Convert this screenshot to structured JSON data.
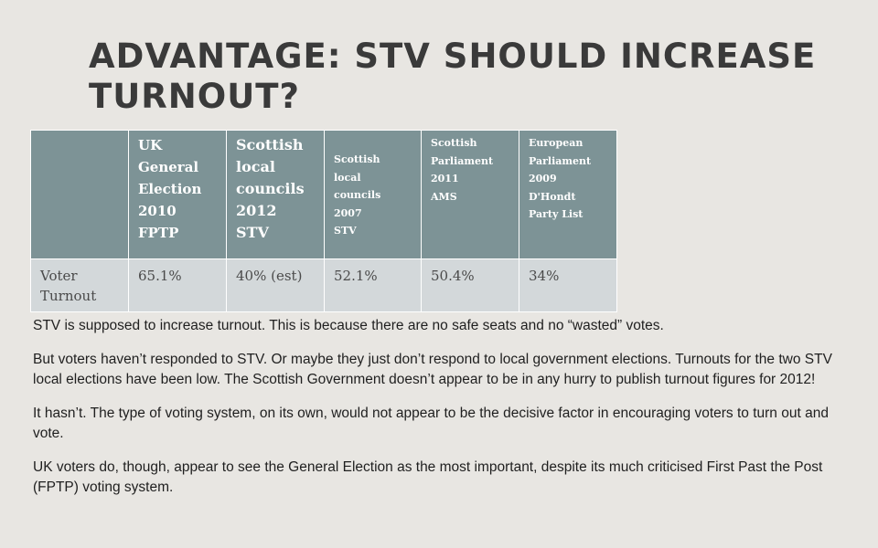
{
  "slide": {
    "title": "ADVANTAGE: STV SHOULD INCREASE TURNOUT?"
  },
  "table": {
    "headers": [
      "",
      "UK\nGeneral\nElection\n2010\nFPTP",
      "Scottish\nlocal\ncouncils\n2012\nSTV",
      "Scottish\nlocal\ncouncils\n2007\nSTV",
      "Scottish\nParliament\n2011\nAMS",
      "European\nParliament\n2009\nD'Hondt\nParty List"
    ],
    "rows": [
      [
        "Voter\nTurnout",
        "65.1%",
        "40% (est)",
        "52.1%",
        "50.4%",
        "34%"
      ]
    ]
  },
  "body": {
    "paragraphs": [
      "STV is supposed to increase turnout. This is because there are no safe seats and no “wasted” votes.",
      "But voters haven’t responded to STV. Or maybe they just don’t respond to local government elections. Turnouts for the two STV local elections have been low. The Scottish Government doesn’t appear to be in any hurry to publish turnout figures for 2012!",
      "It hasn’t. The type of voting system, on its own, would not appear to be the decisive factor in encouraging voters to turn out and vote.",
      "UK voters do, though, appear to see the General Election as the most important, despite its much criticised First Past the Post (FPTP) voting system."
    ]
  }
}
